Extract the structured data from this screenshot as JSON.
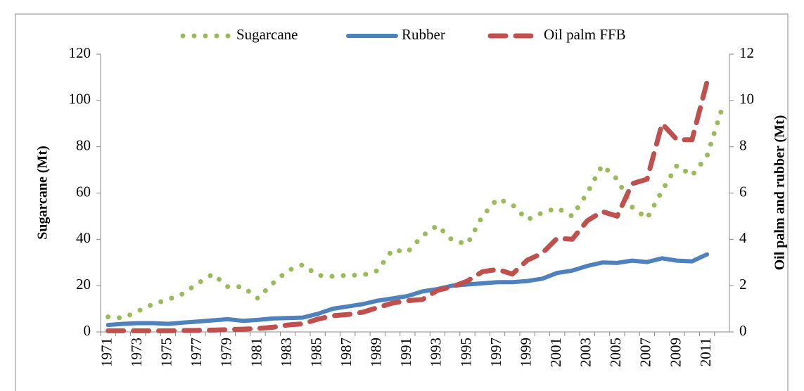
{
  "chart_data": {
    "type": "line",
    "y_label": "Sugarcane (Mt)",
    "y2_label": "Oil palm and rubber (Mt)",
    "categories": [
      "1971",
      null,
      "1973",
      null,
      "1975",
      null,
      "1977",
      null,
      "1979",
      null,
      "1981",
      null,
      "1983",
      null,
      "1985",
      null,
      "1987",
      null,
      "1989",
      null,
      "1991",
      null,
      "1993",
      null,
      "1995",
      null,
      "1997",
      null,
      "1999",
      null,
      "2001",
      null,
      "2003",
      null,
      "2005",
      null,
      "2007",
      null,
      "2009",
      null,
      "2011",
      null
    ],
    "series": [
      {
        "name": "Sugarcane",
        "color": "#9bbb59",
        "style": "dotted",
        "values": [
          6.5,
          6,
          9,
          12,
          14,
          16.5,
          21,
          25,
          19.5,
          19.5,
          14.5,
          21,
          26.5,
          29,
          24.5,
          24,
          24.5,
          24.5,
          26.5,
          35.5,
          34.5,
          41.5,
          46,
          39.5,
          38,
          50,
          57.5,
          55,
          48.5,
          51.5,
          53.5,
          50,
          60,
          72,
          66,
          54,
          49,
          61,
          72,
          67.5,
          76,
          96.5
        ]
      },
      {
        "name": "Rubber",
        "color": "#4f81bd",
        "style": "solid",
        "axis": "y2",
        "values": [
          0.3,
          0.35,
          0.38,
          0.38,
          0.35,
          0.4,
          0.45,
          0.5,
          0.55,
          0.48,
          0.52,
          0.58,
          0.6,
          0.62,
          0.78,
          1.0,
          1.1,
          1.2,
          1.35,
          1.45,
          1.55,
          1.75,
          1.85,
          2.0,
          2.05,
          2.1,
          2.15,
          2.15,
          2.2,
          2.3,
          2.55,
          2.65,
          2.85,
          3.0,
          2.98,
          3.08,
          3.02,
          3.18,
          3.08,
          3.05,
          3.35,
          null
        ]
      },
      {
        "name": "Oil palm FFB",
        "color": "#c0504d",
        "style": "dashed",
        "axis": "y2",
        "values": [
          0.05,
          0.05,
          0.05,
          0.05,
          0.05,
          0.06,
          0.07,
          0.08,
          0.1,
          0.12,
          0.15,
          0.2,
          0.3,
          0.35,
          0.55,
          0.7,
          0.75,
          0.85,
          1.05,
          1.25,
          1.35,
          1.4,
          1.8,
          1.95,
          2.2,
          2.6,
          2.7,
          2.5,
          3.1,
          3.4,
          4.05,
          4.0,
          4.8,
          5.2,
          5.0,
          6.4,
          6.6,
          9.0,
          8.3,
          8.3,
          10.8,
          null
        ]
      }
    ],
    "ylim": [
      0,
      120
    ],
    "yticks": [
      0,
      20,
      40,
      60,
      80,
      100,
      120
    ],
    "y2lim": [
      0,
      12
    ],
    "y2ticks": [
      0,
      2,
      4,
      6,
      8,
      10,
      12
    ],
    "legend": "top",
    "grid": false
  }
}
